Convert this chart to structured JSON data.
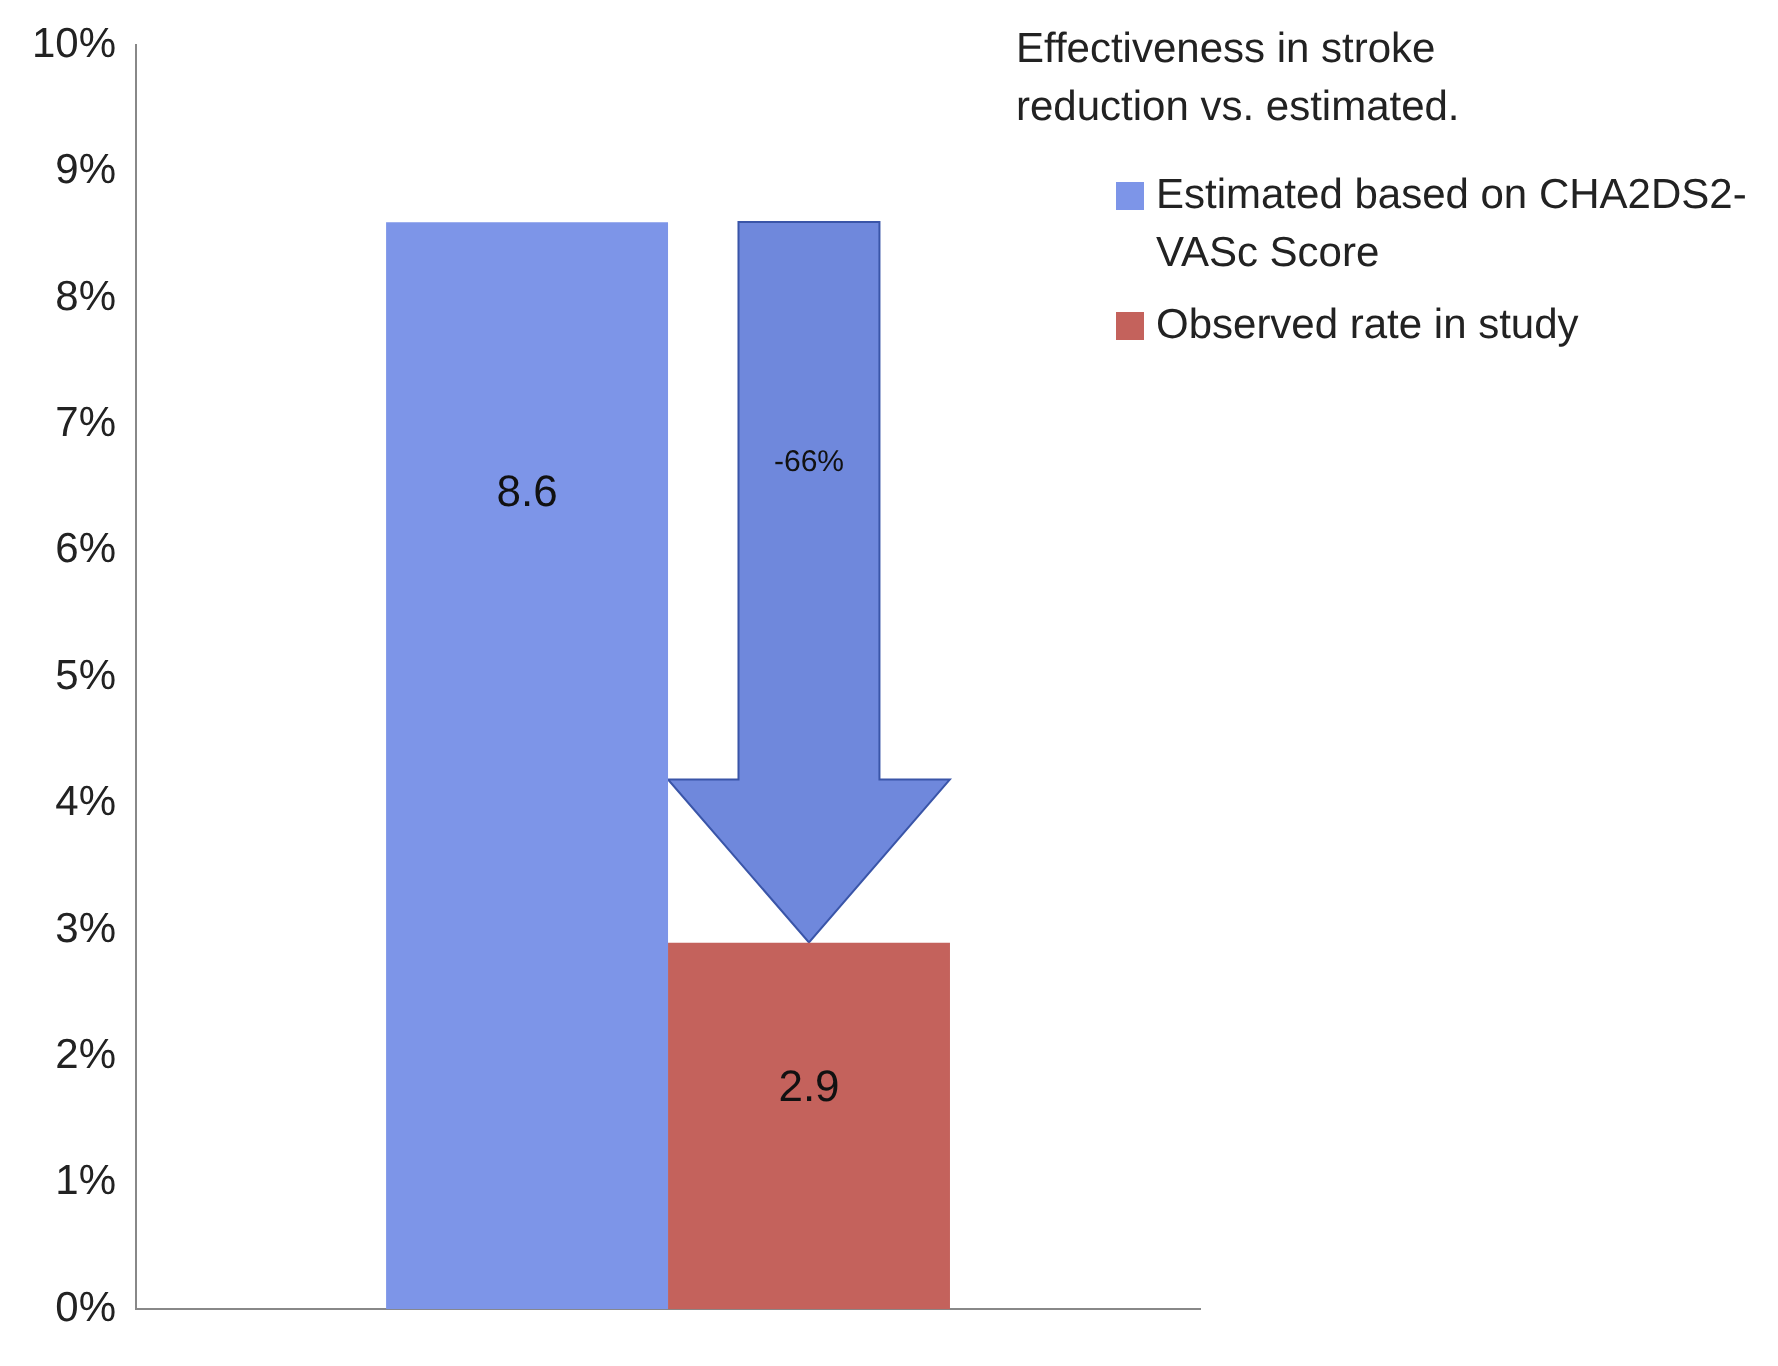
{
  "chart_data": {
    "type": "bar",
    "title": "Effectiveness in stroke reduction vs. estimated.",
    "categories": [
      null
    ],
    "series": [
      {
        "name": "Estimated based on CHA2DS2-VASc Score",
        "color": "#7d95e8",
        "values": [
          8.6
        ]
      },
      {
        "name": "Observed rate in study",
        "color": "#c4625c",
        "values": [
          2.9
        ]
      }
    ],
    "ylim": [
      0,
      10
    ],
    "yticks": [
      {
        "value": 0,
        "label": "0%"
      },
      {
        "value": 1,
        "label": "1%"
      },
      {
        "value": 2,
        "label": "2%"
      },
      {
        "value": 3,
        "label": "3%"
      },
      {
        "value": 4,
        "label": "4%"
      },
      {
        "value": 5,
        "label": "5%"
      },
      {
        "value": 6,
        "label": "6%"
      },
      {
        "value": 7,
        "label": "7%"
      },
      {
        "value": 8,
        "label": "8%"
      },
      {
        "value": 9,
        "label": "9%"
      },
      {
        "value": 10,
        "label": "10%"
      }
    ],
    "grid": false,
    "legend": "right",
    "data_labels": true,
    "annotations": [
      "-66%"
    ]
  }
}
